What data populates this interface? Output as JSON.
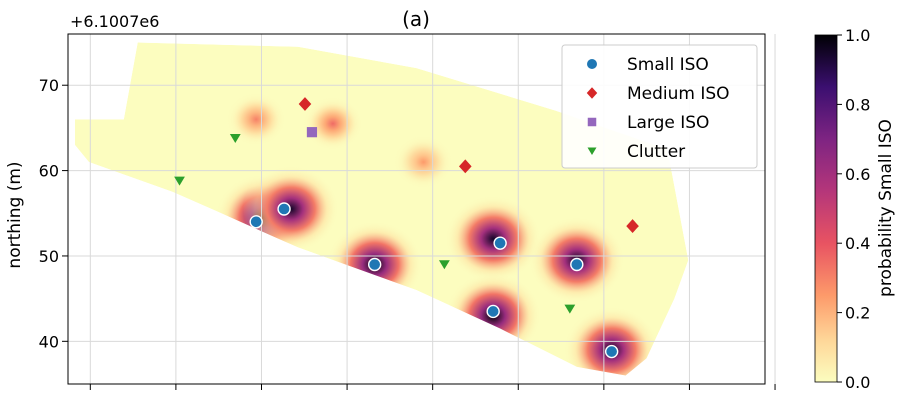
{
  "chart_data": {
    "type": "scatter",
    "title": "(a)",
    "offset_label": "+6.1007e6",
    "ylabel": "northing (m)",
    "ylim": [
      35,
      76
    ],
    "y_ticks": [
      40,
      50,
      60,
      70
    ],
    "y_tick_labels": [
      "40",
      "50",
      "60",
      "70"
    ],
    "x_ticks_count": 9,
    "grid": true,
    "legend_position": "top-right",
    "series": [
      {
        "name": "Small ISO",
        "marker": "circle",
        "color": "#1f77b4",
        "points": [
          [
            0.27,
            54.0
          ],
          [
            0.31,
            55.5
          ],
          [
            0.44,
            49.0
          ],
          [
            0.62,
            51.5
          ],
          [
            0.61,
            43.5
          ],
          [
            0.73,
            49.0
          ],
          [
            0.78,
            38.8
          ]
        ]
      },
      {
        "name": "Medium ISO",
        "marker": "diamond",
        "color": "#d62728",
        "points": [
          [
            0.34,
            67.8
          ],
          [
            0.57,
            60.5
          ],
          [
            0.81,
            53.5
          ]
        ]
      },
      {
        "name": "Large ISO",
        "marker": "square",
        "color": "#9467bd",
        "points": [
          [
            0.35,
            64.5
          ]
        ]
      },
      {
        "name": "Clutter",
        "marker": "triangle-down",
        "color": "#2ca02c",
        "points": [
          [
            0.24,
            63.8
          ],
          [
            0.16,
            58.8
          ],
          [
            0.54,
            49.0
          ],
          [
            0.72,
            43.8
          ]
        ]
      }
    ],
    "heatmap": {
      "peaks": [
        {
          "x": 0.28,
          "y": 54.5,
          "p": 1.0
        },
        {
          "x": 0.32,
          "y": 55.5,
          "p": 0.95
        },
        {
          "x": 0.44,
          "y": 49.0,
          "p": 1.0
        },
        {
          "x": 0.61,
          "y": 52.0,
          "p": 0.95
        },
        {
          "x": 0.61,
          "y": 43.0,
          "p": 1.0
        },
        {
          "x": 0.73,
          "y": 49.5,
          "p": 0.95
        },
        {
          "x": 0.78,
          "y": 39.0,
          "p": 0.95
        },
        {
          "x": 0.27,
          "y": 66.0,
          "p": 0.3
        },
        {
          "x": 0.38,
          "y": 65.5,
          "p": 0.35
        },
        {
          "x": 0.51,
          "y": 61.0,
          "p": 0.25
        }
      ]
    },
    "colorbar": {
      "label": "probability Small ISO",
      "min": 0.0,
      "max": 1.0,
      "ticks": [
        "0.0",
        "0.2",
        "0.4",
        "0.6",
        "0.8",
        "1.0"
      ]
    }
  }
}
